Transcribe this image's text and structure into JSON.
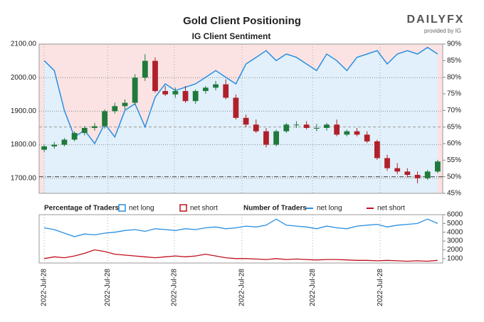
{
  "chart_data": [
    {
      "type": "candlestick",
      "title": "Gold Client Positioning",
      "subtitle": "IG Client Sentiment",
      "source": "DAILYFX",
      "source_note": "provided by IG",
      "open": [
        1785,
        1795,
        1800,
        1815,
        1835,
        1850,
        1855,
        1900,
        1915,
        1925,
        2000,
        2050,
        1960,
        1950,
        1960,
        1930,
        1960,
        1970,
        1980,
        1940,
        1880,
        1860,
        1840,
        1800,
        1840,
        1860,
        1860,
        1850,
        1850,
        1860,
        1830,
        1840,
        1830,
        1810,
        1760,
        1730,
        1720,
        1710,
        1700,
        1720
      ],
      "high": [
        1800,
        1808,
        1820,
        1840,
        1855,
        1865,
        1905,
        1925,
        1935,
        2010,
        2070,
        2060,
        1975,
        1970,
        1975,
        1965,
        1975,
        1990,
        1995,
        1950,
        1890,
        1875,
        1850,
        1845,
        1865,
        1870,
        1870,
        1862,
        1865,
        1875,
        1845,
        1850,
        1840,
        1815,
        1770,
        1745,
        1730,
        1720,
        1725,
        1755
      ],
      "low": [
        1778,
        1788,
        1795,
        1810,
        1828,
        1842,
        1848,
        1893,
        1905,
        1918,
        1990,
        1955,
        1945,
        1940,
        1925,
        1922,
        1952,
        1962,
        1935,
        1875,
        1852,
        1835,
        1792,
        1795,
        1835,
        1850,
        1845,
        1840,
        1842,
        1825,
        1825,
        1825,
        1805,
        1755,
        1722,
        1712,
        1702,
        1685,
        1695,
        1715
      ],
      "close": [
        1795,
        1800,
        1815,
        1835,
        1850,
        1855,
        1900,
        1915,
        1925,
        2000,
        2050,
        1960,
        1950,
        1960,
        1930,
        1960,
        1970,
        1980,
        1940,
        1880,
        1860,
        1840,
        1800,
        1840,
        1860,
        1860,
        1850,
        1850,
        1860,
        1830,
        1840,
        1830,
        1810,
        1760,
        1730,
        1720,
        1710,
        1700,
        1720,
        1750
      ],
      "up_color": "#1f7a3c",
      "down_color": "#b0202a",
      "xlim": [
        -0.5,
        39.5
      ],
      "xticks": [
        0,
        6.3,
        12.9,
        19.6,
        26.6,
        33.3
      ],
      "ylim": [
        1655,
        2100
      ],
      "yticks": [
        {
          "value": 2100,
          "label": "2100.00"
        },
        {
          "value": 2000,
          "label": "2000.00"
        },
        {
          "value": 1900,
          "label": "1900.00"
        },
        {
          "value": 1800,
          "label": "1800.00"
        },
        {
          "value": 1700,
          "label": "1700.00"
        }
      ],
      "y2lim": [
        45,
        90
      ],
      "y2ticks": [
        {
          "value": 90,
          "label": "90%"
        },
        {
          "value": 85,
          "label": "85%"
        },
        {
          "value": 80,
          "label": "80%"
        },
        {
          "value": 75,
          "label": "75%"
        },
        {
          "value": 70,
          "label": "70%"
        },
        {
          "value": 65,
          "label": "65%"
        },
        {
          "value": 60,
          "label": "60%"
        },
        {
          "value": 55,
          "label": "55%"
        },
        {
          "value": 50,
          "label": "50%"
        },
        {
          "value": 45,
          "label": "45%"
        }
      ],
      "hlines": [
        50,
        65
      ],
      "legend_title": "Percentage of Traders",
      "series": [
        {
          "name": "net long",
          "color": "#2a8fe0",
          "axis": "y2",
          "values": [
            85,
            82,
            70,
            62,
            64,
            60,
            66,
            62,
            70,
            72,
            65,
            74,
            78,
            76,
            77,
            78,
            80,
            82,
            80,
            78,
            84,
            86,
            88,
            85,
            87,
            86,
            84,
            82,
            87,
            85,
            82,
            86,
            87,
            88,
            84,
            87,
            88,
            87,
            89,
            87
          ]
        },
        {
          "name": "net short",
          "color": "#c0101e"
        }
      ]
    },
    {
      "type": "line",
      "legend_title": "Number of Traders",
      "xlim": [
        -0.5,
        39.5
      ],
      "xticks": [
        {
          "value": 0,
          "label": "2022-Jul-28"
        },
        {
          "value": 6.3,
          "label": "2022-Jul-28"
        },
        {
          "value": 12.9,
          "label": "2022-Jul-28"
        },
        {
          "value": 19.6,
          "label": "2022-Jul-28"
        },
        {
          "value": 26.6,
          "label": "2022-Jul-28"
        },
        {
          "value": 33.3,
          "label": "2022-Jul-28"
        }
      ],
      "ylim": [
        500,
        6000
      ],
      "yticks": [
        6000,
        5000,
        4000,
        3000,
        2000,
        1000
      ],
      "series": [
        {
          "name": "net long",
          "color": "#2a8fe0",
          "values": [
            4500,
            4300,
            3900,
            3500,
            3800,
            3700,
            3900,
            4000,
            4200,
            4300,
            4100,
            4400,
            4300,
            4200,
            4400,
            4300,
            4500,
            4600,
            4400,
            4500,
            4700,
            4600,
            4800,
            5500,
            4800,
            4700,
            4600,
            4400,
            4700,
            4500,
            4400,
            4700,
            4800,
            4900,
            4600,
            4800,
            4900,
            5000,
            5500,
            5000
          ]
        },
        {
          "name": "net short",
          "color": "#c0101e",
          "values": [
            1000,
            1200,
            1100,
            1300,
            1600,
            2000,
            1800,
            1500,
            1400,
            1300,
            1200,
            1100,
            1200,
            1300,
            1200,
            1300,
            1500,
            1300,
            1100,
            1000,
            1000,
            950,
            900,
            1000,
            900,
            950,
            900,
            850,
            900,
            900,
            850,
            800,
            800,
            750,
            800,
            750,
            700,
            750,
            700,
            800
          ]
        }
      ]
    }
  ]
}
